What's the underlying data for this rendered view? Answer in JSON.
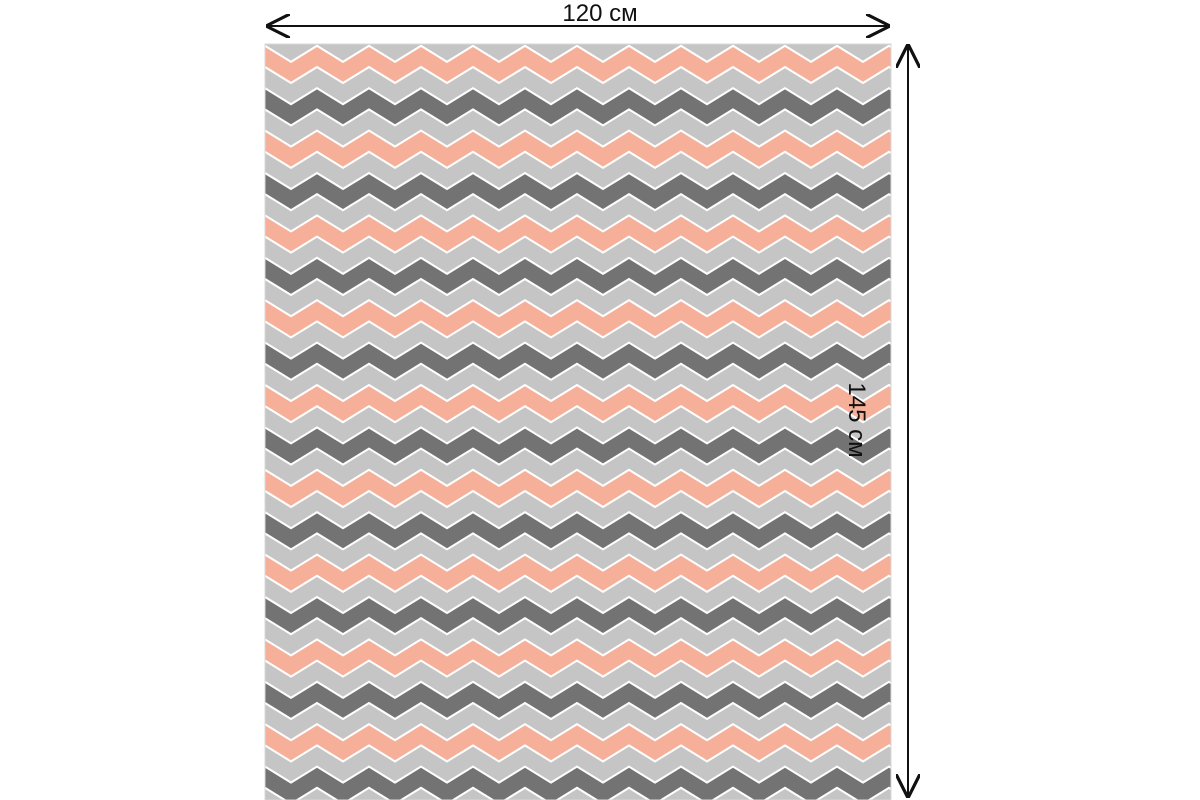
{
  "dimensions": {
    "width_label": "120 см",
    "height_label": "145 см"
  },
  "pattern": {
    "name": "chevron",
    "colors": {
      "dark_gray": "#737373",
      "light_gray": "#c5c5c5",
      "peach": "#f6b09a",
      "white": "#ffffff",
      "arrow": "#111111"
    },
    "stripe_sequence": [
      "dark_gray",
      "light_gray",
      "peach",
      "light_gray"
    ]
  }
}
